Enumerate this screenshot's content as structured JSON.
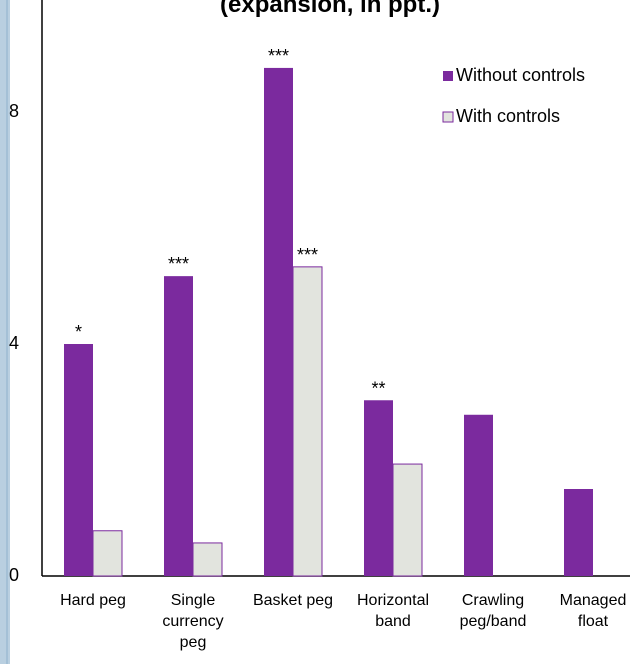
{
  "chart_data": {
    "type": "bar",
    "title": "(expansion, in ppt.)",
    "categories": [
      "Hard peg",
      "Single currency peg",
      "Basket peg",
      "Horizontal band",
      "Crawling peg/band",
      "Managed float"
    ],
    "series": [
      {
        "name": "Without controls",
        "color": "#7b2a9e",
        "values": [
          4.0,
          5.17,
          8.76,
          3.03,
          2.78,
          1.5
        ],
        "stars": [
          "*",
          "***",
          "***",
          "**",
          null,
          null
        ]
      },
      {
        "name": "With controls",
        "color": "#e2e4de",
        "values": [
          0.78,
          0.57,
          5.33,
          1.93,
          0,
          0
        ],
        "stars": [
          null,
          null,
          "***",
          null,
          null,
          null
        ]
      }
    ],
    "ylim": [
      0,
      10
    ],
    "yticks": [
      0,
      4,
      8
    ],
    "grid": false
  }
}
